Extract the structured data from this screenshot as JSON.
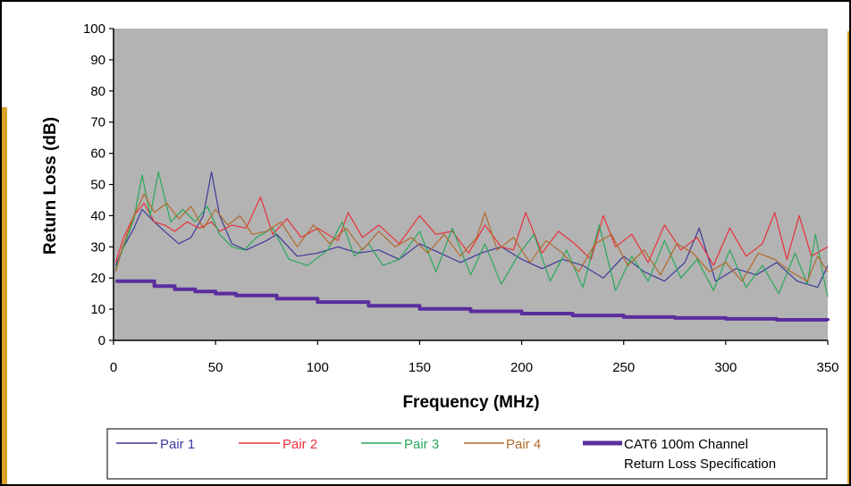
{
  "chart_data": {
    "type": "line",
    "title": "",
    "xlabel": "Frequency (MHz)",
    "ylabel": "Return Loss (dB)",
    "xlim": [
      0,
      350
    ],
    "ylim": [
      0,
      100
    ],
    "x_ticks": [
      0,
      50,
      100,
      150,
      200,
      250,
      300,
      350
    ],
    "y_ticks": [
      0,
      10,
      20,
      30,
      40,
      50,
      60,
      70,
      80,
      90,
      100
    ],
    "grid": false,
    "plot_background": "#b3b3b3",
    "legend_position": "bottom",
    "series": [
      {
        "name": "Pair 1",
        "color": "#3d3a9a",
        "x": [
          1,
          5,
          10,
          14,
          20,
          25,
          32,
          38,
          44,
          48,
          52,
          58,
          65,
          75,
          80,
          90,
          100,
          110,
          120,
          130,
          140,
          150,
          160,
          170,
          180,
          190,
          200,
          210,
          220,
          230,
          240,
          250,
          260,
          270,
          280,
          287,
          295,
          305,
          315,
          325,
          335,
          345,
          350
        ],
        "values": [
          24,
          30,
          36,
          42,
          38,
          35,
          31,
          33,
          40,
          54,
          40,
          31,
          29,
          32,
          34,
          27,
          28,
          30,
          28,
          29,
          26,
          31,
          28,
          25,
          28,
          30,
          26,
          23,
          26,
          24,
          20,
          27,
          22,
          19,
          25,
          36,
          19,
          23,
          21,
          25,
          19,
          17,
          24
        ]
      },
      {
        "name": "Pair 2",
        "color": "#e8323a",
        "x": [
          1,
          5,
          10,
          15,
          20,
          25,
          30,
          36,
          42,
          48,
          52,
          58,
          65,
          72,
          78,
          85,
          92,
          100,
          110,
          115,
          122,
          130,
          140,
          150,
          158,
          166,
          174,
          182,
          190,
          196,
          202,
          210,
          218,
          226,
          234,
          240,
          246,
          254,
          262,
          270,
          278,
          286,
          294,
          302,
          310,
          318,
          324,
          330,
          336,
          342,
          350
        ],
        "values": [
          25,
          33,
          40,
          44,
          38,
          37,
          35,
          38,
          36,
          38,
          35,
          37,
          36,
          46,
          34,
          39,
          33,
          36,
          32,
          41,
          33,
          37,
          31,
          40,
          34,
          35,
          28,
          37,
          30,
          29,
          41,
          28,
          35,
          31,
          26,
          40,
          30,
          34,
          25,
          37,
          29,
          33,
          24,
          36,
          27,
          31,
          41,
          26,
          40,
          27,
          30
        ]
      },
      {
        "name": "Pair 3",
        "color": "#2aa85b",
        "x": [
          1,
          5,
          10,
          14,
          18,
          22,
          28,
          34,
          40,
          46,
          52,
          58,
          64,
          70,
          78,
          86,
          95,
          105,
          112,
          118,
          125,
          132,
          140,
          150,
          158,
          166,
          175,
          182,
          190,
          198,
          206,
          214,
          222,
          230,
          238,
          246,
          254,
          262,
          270,
          278,
          286,
          294,
          302,
          310,
          318,
          326,
          334,
          340,
          344,
          348,
          350
        ],
        "values": [
          23,
          30,
          39,
          53,
          40,
          54,
          38,
          42,
          38,
          43,
          34,
          30,
          29,
          33,
          36,
          26,
          24,
          29,
          38,
          27,
          31,
          24,
          26,
          35,
          22,
          36,
          21,
          31,
          18,
          27,
          34,
          19,
          29,
          17,
          37,
          16,
          27,
          19,
          32,
          20,
          26,
          16,
          29,
          17,
          24,
          15,
          28,
          18,
          34,
          20,
          14
        ]
      },
      {
        "name": "Pair 4",
        "color": "#b36a2c",
        "x": [
          1,
          5,
          10,
          15,
          20,
          26,
          32,
          38,
          44,
          50,
          56,
          62,
          68,
          75,
          82,
          90,
          98,
          106,
          114,
          122,
          130,
          138,
          146,
          154,
          162,
          170,
          178,
          182,
          188,
          196,
          204,
          212,
          220,
          228,
          236,
          244,
          252,
          260,
          268,
          276,
          284,
          292,
          300,
          308,
          316,
          324,
          332,
          340,
          345,
          350
        ],
        "values": [
          22,
          31,
          40,
          47,
          41,
          44,
          39,
          43,
          36,
          42,
          37,
          40,
          34,
          35,
          38,
          30,
          37,
          31,
          36,
          29,
          35,
          30,
          33,
          28,
          34,
          27,
          33,
          41,
          29,
          33,
          25,
          32,
          28,
          22,
          31,
          34,
          24,
          29,
          21,
          31,
          28,
          22,
          25,
          19,
          28,
          26,
          22,
          19,
          27,
          22
        ]
      },
      {
        "name": "CAT6 100m Channel Return Loss Specification",
        "color": "#5b2d9e",
        "x": [
          1,
          10,
          20,
          30,
          40,
          50,
          60,
          80,
          100,
          125,
          150,
          175,
          200,
          225,
          250,
          275,
          300,
          325,
          350
        ],
        "values": [
          19,
          19,
          17.4,
          16.4,
          15.7,
          15.0,
          14.4,
          13.4,
          12.3,
          11.1,
          10.1,
          9.3,
          8.6,
          8.0,
          7.5,
          7.2,
          6.9,
          6.6,
          6.3
        ]
      }
    ],
    "legend": {
      "items": [
        "Pair 1",
        "Pair 2",
        "Pair 3",
        "Pair 4"
      ],
      "spec_line1": "CAT6 100m Channel",
      "spec_line2": "Return Loss Specification"
    }
  }
}
